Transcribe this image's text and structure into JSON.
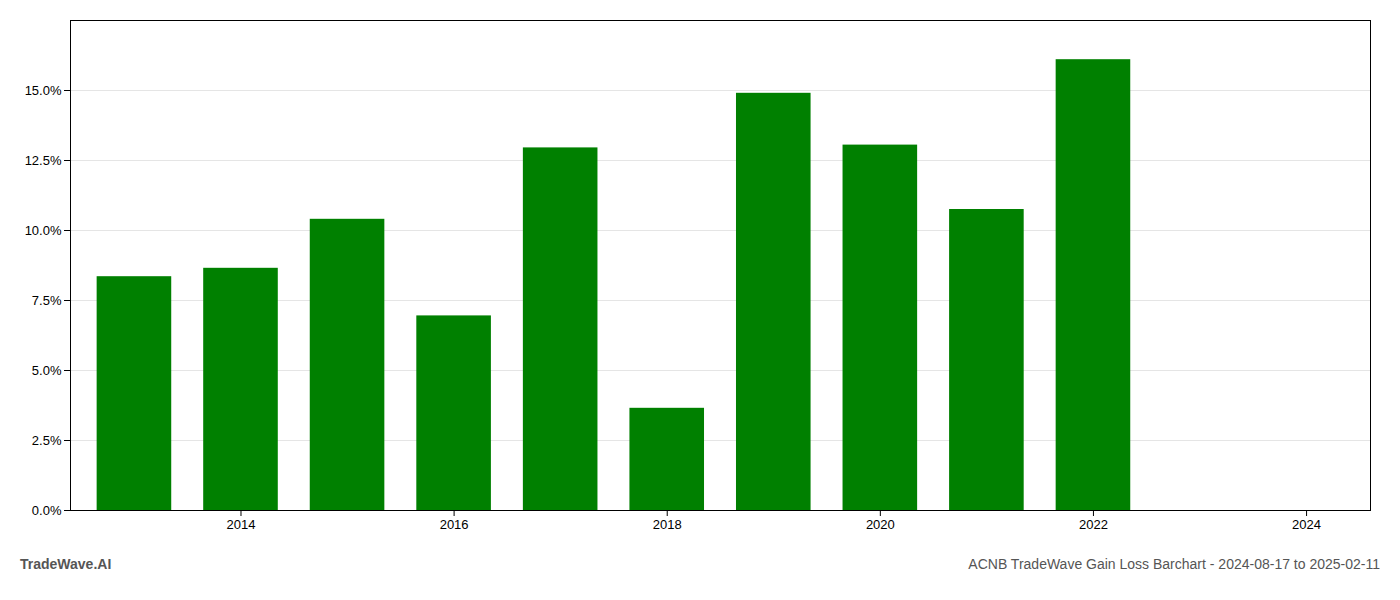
{
  "chart_data": {
    "type": "bar",
    "x": [
      2013,
      2014,
      2015,
      2016,
      2017,
      2018,
      2019,
      2020,
      2021,
      2022
    ],
    "values": [
      0.0835,
      0.0865,
      0.104,
      0.0695,
      0.1295,
      0.0365,
      0.149,
      0.1305,
      0.1075,
      0.161
    ],
    "color": "#008000",
    "xlim": [
      2012.4,
      2024.6
    ],
    "xticks": [
      2014,
      2016,
      2018,
      2020,
      2022,
      2024
    ],
    "ylim": [
      0,
      0.175
    ],
    "yticks": [
      {
        "value": 0.0,
        "label": "0.0%"
      },
      {
        "value": 0.025,
        "label": "2.5%"
      },
      {
        "value": 0.05,
        "label": "5.0%"
      },
      {
        "value": 0.075,
        "label": "7.5%"
      },
      {
        "value": 0.1,
        "label": "10.0%"
      },
      {
        "value": 0.125,
        "label": "12.5%"
      },
      {
        "value": 0.15,
        "label": "15.0%"
      }
    ],
    "grid": true,
    "annotations": [
      "TradeWave.AI",
      "ACNB TradeWave Gain Loss Barchart - 2024-08-17 to 2025-02-11"
    ]
  }
}
